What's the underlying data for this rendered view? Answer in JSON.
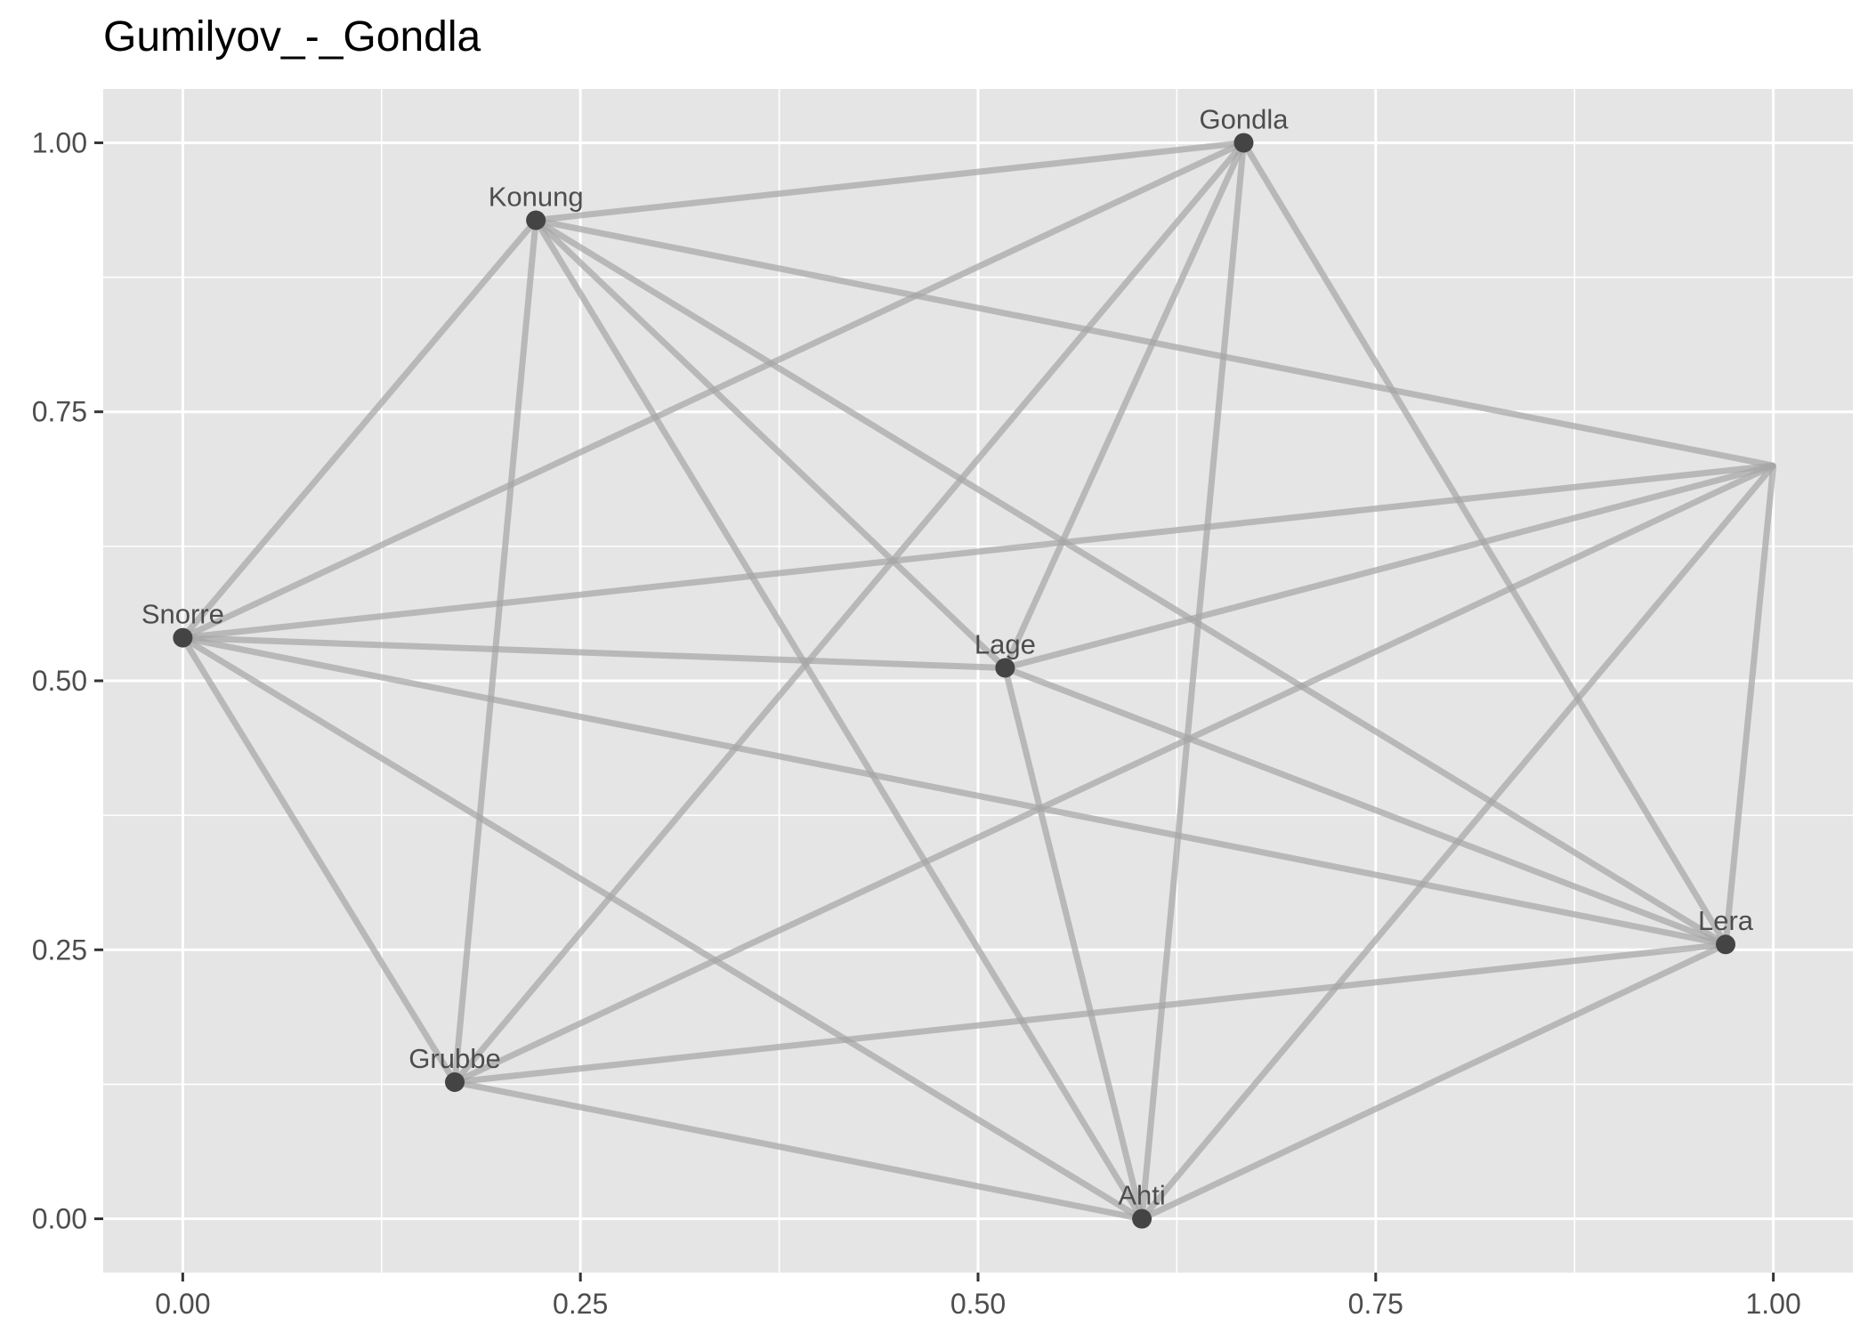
{
  "chart_data": {
    "type": "scatter",
    "title": "Gumilyov_-_Gondla",
    "xlabel": "",
    "ylabel": "",
    "xlim": [
      -0.05,
      1.05
    ],
    "ylim": [
      -0.05,
      1.05
    ],
    "x_ticks": [
      0.0,
      0.25,
      0.5,
      0.75,
      1.0
    ],
    "x_tick_labels": [
      "0.00",
      "0.25",
      "0.50",
      "0.75",
      "1.00"
    ],
    "y_ticks": [
      0.0,
      0.25,
      0.5,
      0.75,
      1.0
    ],
    "y_tick_labels": [
      "0.00",
      "0.25",
      "0.50",
      "0.75",
      "1.00"
    ],
    "grid": true,
    "nodes": [
      {
        "name": "Gondla",
        "x": 0.667,
        "y": 1.0,
        "label": true
      },
      {
        "name": "Konung",
        "x": 0.222,
        "y": 0.928,
        "label": true
      },
      {
        "name": "Snorre",
        "x": 0.0,
        "y": 0.54,
        "label": true
      },
      {
        "name": "Lage",
        "x": 0.517,
        "y": 0.512,
        "label": true
      },
      {
        "name": "Lera",
        "x": 0.97,
        "y": 0.255,
        "label": true
      },
      {
        "name": "Grubbe",
        "x": 0.171,
        "y": 0.127,
        "label": true
      },
      {
        "name": "Ahti",
        "x": 0.603,
        "y": 0.0,
        "label": true
      },
      {
        "name": "",
        "x": 1.0,
        "y": 0.7,
        "label": false
      }
    ],
    "edges": [
      [
        1,
        0
      ],
      [
        1,
        2
      ],
      [
        1,
        5
      ],
      [
        1,
        3
      ],
      [
        1,
        4
      ],
      [
        1,
        6
      ],
      [
        1,
        7
      ],
      [
        0,
        2
      ],
      [
        0,
        5
      ],
      [
        0,
        3
      ],
      [
        0,
        6
      ],
      [
        0,
        4
      ],
      [
        2,
        7
      ],
      [
        2,
        3
      ],
      [
        2,
        4
      ],
      [
        2,
        6
      ],
      [
        2,
        5
      ],
      [
        3,
        7
      ],
      [
        3,
        4
      ],
      [
        3,
        6
      ],
      [
        5,
        7
      ],
      [
        5,
        4
      ],
      [
        5,
        6
      ],
      [
        6,
        7
      ],
      [
        6,
        4
      ],
      [
        4,
        7
      ]
    ],
    "colors": {
      "panel_background": "#e5e5e5",
      "grid_line": "#ffffff",
      "edge": "#a6a6a6",
      "node": "#444444",
      "node_label": "#4d4d4d",
      "tick_label": "#4d4d4d"
    }
  }
}
